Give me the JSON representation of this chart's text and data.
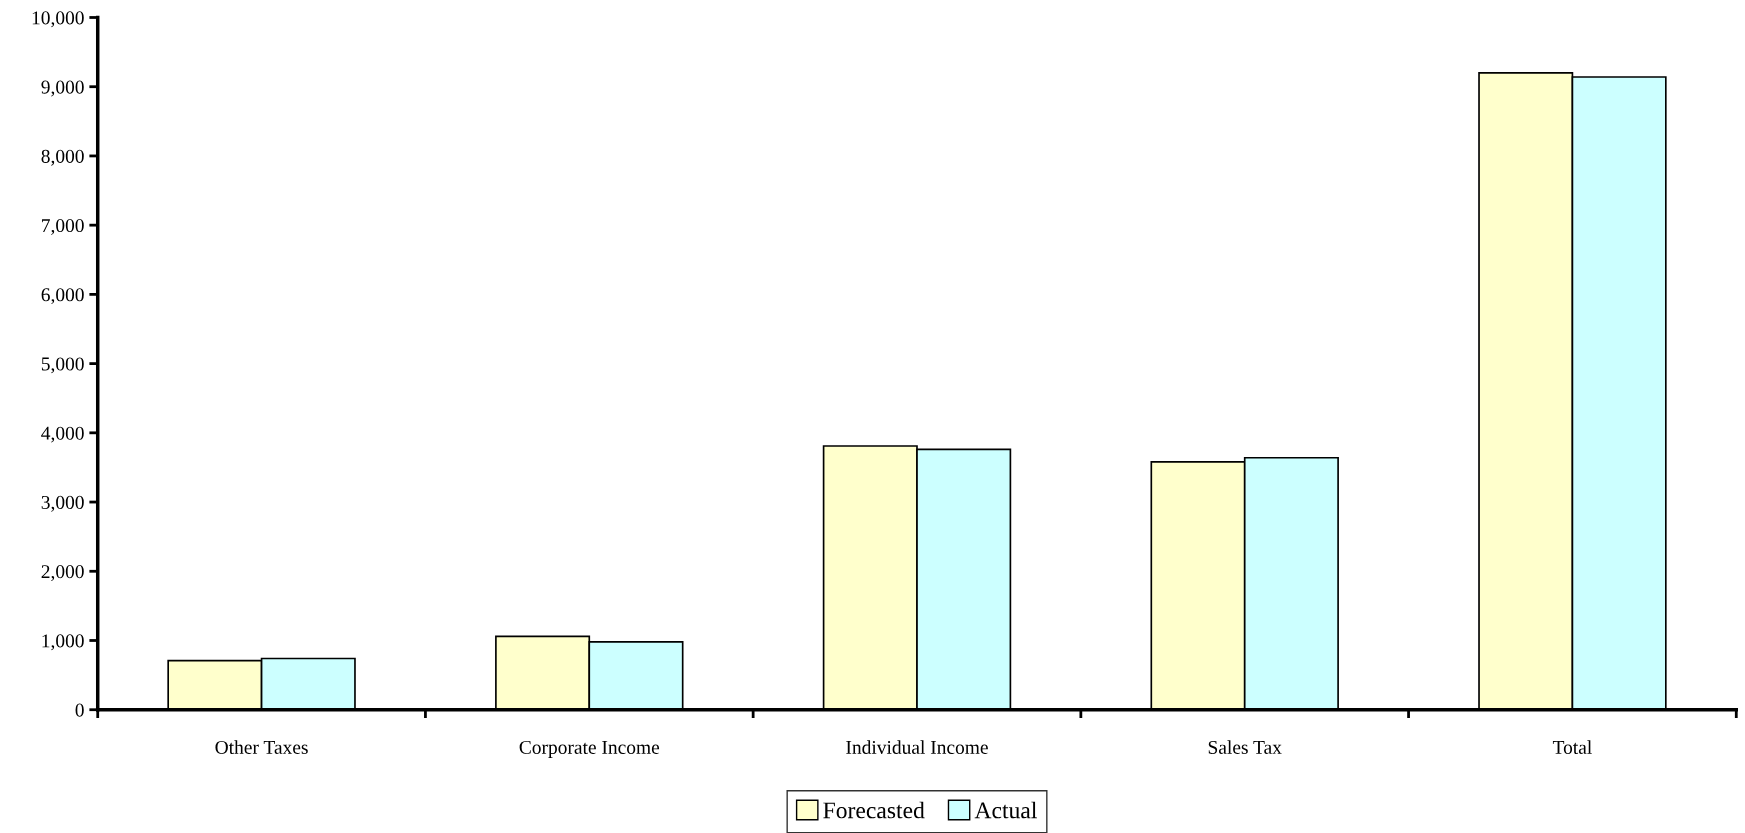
{
  "chart_data": {
    "type": "bar",
    "categories": [
      "Other Taxes",
      "Corporate Income",
      "Individual Income",
      "Sales Tax",
      "Total"
    ],
    "series": [
      {
        "name": "Forecasted",
        "color": "#ffffcc",
        "values": [
          710,
          1060,
          3810,
          3580,
          9200
        ]
      },
      {
        "name": "Actual",
        "color": "#ccffff",
        "values": [
          740,
          980,
          3760,
          3640,
          9140
        ]
      }
    ],
    "ylim": [
      0,
      10000
    ],
    "yticks": [
      {
        "value": 0,
        "label": "0"
      },
      {
        "value": 1000,
        "label": "1,000"
      },
      {
        "value": 2000,
        "label": "2,000"
      },
      {
        "value": 3000,
        "label": "3,000"
      },
      {
        "value": 4000,
        "label": "4,000"
      },
      {
        "value": 5000,
        "label": "5,000"
      },
      {
        "value": 6000,
        "label": "6,000"
      },
      {
        "value": 7000,
        "label": "7,000"
      },
      {
        "value": 8000,
        "label": "8,000"
      },
      {
        "value": 9000,
        "label": "9,000"
      },
      {
        "value": 10000,
        "label": "10,000"
      }
    ],
    "grid": false,
    "legend": "bottom"
  }
}
